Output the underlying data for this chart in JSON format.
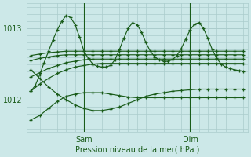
{
  "background_color": "#cce8e8",
  "grid_color": "#aacccc",
  "line_color": "#1a5c1a",
  "xlabel": "Pression niveau de la mer( hPa )",
  "yticks": [
    1012,
    1013
  ],
  "ylim": [
    1011.55,
    1013.35
  ],
  "xlim": [
    -1,
    49
  ],
  "xtick_positions": [
    12,
    36
  ],
  "xtick_labels": [
    "Sam",
    "Dim"
  ],
  "vlines": [
    12,
    36
  ],
  "series": [
    {
      "x": [
        0,
        2,
        4,
        6,
        8,
        10,
        12,
        14,
        16,
        18,
        20,
        22,
        24,
        26,
        28,
        30,
        32,
        34,
        36,
        38,
        40,
        42,
        44,
        46,
        48
      ],
      "y": [
        1012.12,
        1012.22,
        1012.3,
        1012.37,
        1012.42,
        1012.46,
        1012.48,
        1012.5,
        1012.51,
        1012.51,
        1012.51,
        1012.51,
        1012.51,
        1012.51,
        1012.51,
        1012.51,
        1012.51,
        1012.51,
        1012.51,
        1012.51,
        1012.51,
        1012.51,
        1012.51,
        1012.51,
        1012.51
      ]
    },
    {
      "x": [
        0,
        2,
        4,
        6,
        8,
        10,
        12,
        14,
        16,
        18,
        20,
        22,
        24,
        26,
        28,
        30,
        32,
        34,
        36,
        38,
        40,
        42,
        44,
        46,
        48
      ],
      "y": [
        1012.32,
        1012.38,
        1012.44,
        1012.48,
        1012.52,
        1012.54,
        1012.56,
        1012.57,
        1012.57,
        1012.57,
        1012.57,
        1012.57,
        1012.57,
        1012.57,
        1012.57,
        1012.57,
        1012.57,
        1012.57,
        1012.57,
        1012.57,
        1012.57,
        1012.57,
        1012.57,
        1012.57,
        1012.57
      ]
    },
    {
      "x": [
        0,
        2,
        4,
        6,
        8,
        10,
        12,
        14,
        16,
        18,
        20,
        22,
        24,
        26,
        28,
        30,
        32,
        34,
        36,
        38,
        40,
        42,
        44,
        46,
        48
      ],
      "y": [
        1012.55,
        1012.58,
        1012.6,
        1012.62,
        1012.63,
        1012.63,
        1012.63,
        1012.63,
        1012.63,
        1012.63,
        1012.63,
        1012.63,
        1012.63,
        1012.63,
        1012.63,
        1012.63,
        1012.63,
        1012.63,
        1012.63,
        1012.63,
        1012.63,
        1012.63,
        1012.63,
        1012.63,
        1012.63
      ]
    },
    {
      "x": [
        0,
        2,
        4,
        6,
        8,
        10,
        12,
        14,
        16,
        18,
        20,
        22,
        24,
        26,
        28,
        30,
        32,
        34,
        36,
        38,
        40,
        42,
        44,
        46,
        48
      ],
      "y": [
        1012.62,
        1012.64,
        1012.66,
        1012.67,
        1012.68,
        1012.68,
        1012.68,
        1012.68,
        1012.68,
        1012.68,
        1012.68,
        1012.68,
        1012.68,
        1012.68,
        1012.68,
        1012.68,
        1012.68,
        1012.68,
        1012.68,
        1012.68,
        1012.68,
        1012.68,
        1012.68,
        1012.68,
        1012.68
      ]
    },
    {
      "x": [
        0,
        2,
        4,
        6,
        8,
        10,
        12,
        14,
        16,
        18,
        20,
        22,
        24,
        26,
        28,
        30,
        32,
        34,
        36,
        38,
        40,
        42,
        44,
        46,
        48
      ],
      "y": [
        1012.42,
        1012.3,
        1012.18,
        1012.08,
        1012.0,
        1011.93,
        1011.88,
        1011.85,
        1011.85,
        1011.87,
        1011.9,
        1011.95,
        1012.0,
        1012.05,
        1012.08,
        1012.1,
        1012.12,
        1012.13,
        1012.14,
        1012.15,
        1012.15,
        1012.15,
        1012.15,
        1012.15,
        1012.15
      ]
    }
  ],
  "peak_line": {
    "x": [
      0,
      1,
      2,
      3,
      4,
      5,
      6,
      7,
      8,
      9,
      10,
      11,
      12,
      13,
      14,
      15,
      16,
      17,
      18,
      19,
      20,
      21,
      22,
      23,
      24,
      25,
      26,
      27,
      28,
      29,
      30,
      31,
      32,
      33,
      34,
      35,
      36,
      37,
      38,
      39,
      40,
      41,
      42,
      43,
      44,
      45,
      46,
      47,
      48
    ],
    "y": [
      1012.12,
      1012.2,
      1012.35,
      1012.52,
      1012.68,
      1012.84,
      1012.98,
      1013.1,
      1013.18,
      1013.15,
      1013.05,
      1012.88,
      1012.68,
      1012.58,
      1012.5,
      1012.47,
      1012.46,
      1012.46,
      1012.48,
      1012.56,
      1012.7,
      1012.86,
      1013.0,
      1013.08,
      1013.05,
      1012.95,
      1012.8,
      1012.68,
      1012.6,
      1012.56,
      1012.54,
      1012.54,
      1012.56,
      1012.62,
      1012.72,
      1012.85,
      1012.98,
      1013.06,
      1013.08,
      1013.0,
      1012.86,
      1012.7,
      1012.58,
      1012.5,
      1012.46,
      1012.44,
      1012.42,
      1012.41,
      1012.4
    ]
  },
  "trough_line": {
    "x": [
      0,
      2,
      4,
      6,
      8,
      10,
      12,
      14,
      16,
      18,
      20,
      22,
      24,
      26,
      28,
      30,
      32,
      34,
      36,
      38,
      40,
      42,
      44,
      46,
      48
    ],
    "y": [
      1011.72,
      1011.78,
      1011.88,
      1011.98,
      1012.05,
      1012.08,
      1012.1,
      1012.1,
      1012.1,
      1012.08,
      1012.06,
      1012.04,
      1012.03,
      1012.03,
      1012.03,
      1012.03,
      1012.03,
      1012.03,
      1012.03,
      1012.03,
      1012.03,
      1012.03,
      1012.03,
      1012.03,
      1012.03
    ]
  }
}
